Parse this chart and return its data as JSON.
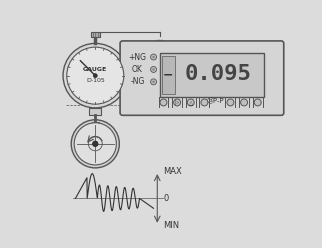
{
  "bg_color": "#dcdcdc",
  "line_color": "#555555",
  "dark_color": "#333333",
  "gauge_label1": "GAUGE",
  "gauge_label2": "D-105",
  "labels_ng_plus": "+NG",
  "labels_ok": "OK",
  "labels_ng_minus": "-NG",
  "label_pp": "@P-P",
  "max_label": "MAX",
  "zero_label": "0",
  "min_label": "MIN",
  "display_text": "0.095"
}
